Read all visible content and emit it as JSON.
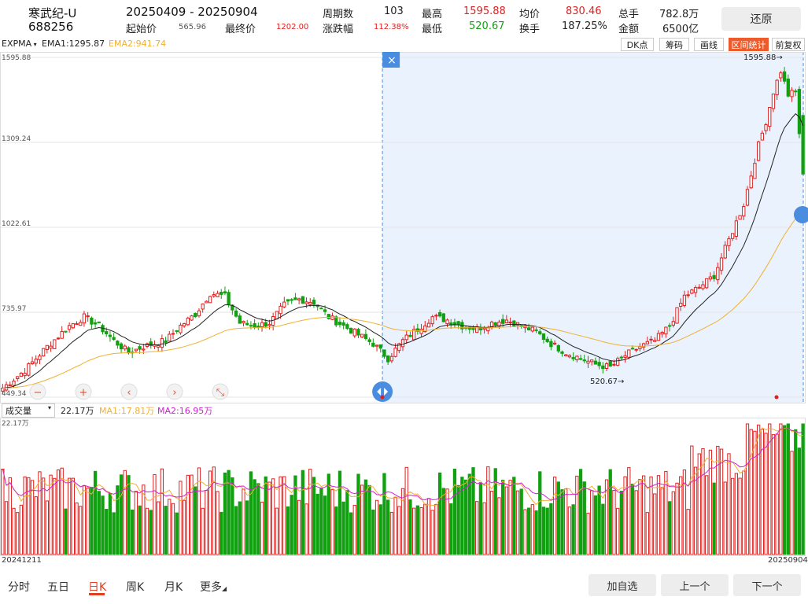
{
  "header": {
    "name": "寒武纪-U",
    "code": "688256",
    "range": "20250409  - 20250904",
    "start_label": "起始价",
    "start_value": "565.96",
    "end_label": "最终价",
    "end_value": "1202.00",
    "period_label": "周期数",
    "period_value": "103",
    "change_label": "涨跌幅",
    "change_value": "112.38%",
    "high_label": "最高",
    "high_value": "1595.88",
    "low_label": "最低",
    "low_value": "520.67",
    "avg_label": "均价",
    "avg_value": "830.46",
    "turnover_label": "换手",
    "turnover_value": "187.25%",
    "hands_label": "总手",
    "hands_value": "782.8万",
    "amount_label": "金额",
    "amount_value": "6500亿",
    "restore_label": "还原"
  },
  "toolbar": {
    "indicator": "EXPMA",
    "ema1": "EMA1:1295.87",
    "ema2": "EMA2:941.74",
    "buttons": [
      "DK点",
      "筹码",
      "画线",
      "区间统计",
      "前复权"
    ]
  },
  "volume_toolbar": {
    "indicator": "成交量",
    "value": "22.17万",
    "ma1": "MA1:17.81万",
    "ma2": "MA2:16.95万"
  },
  "dates": {
    "start": "20241211",
    "end": "20250904"
  },
  "tabs": [
    "分时",
    "五日",
    "日K",
    "周K",
    "月K",
    "更多"
  ],
  "bottom_buttons": [
    "加自选",
    "上一个",
    "下一个"
  ],
  "colors": {
    "up": "#e02020",
    "down": "#11a011",
    "ema1": "#222222",
    "ema2": "#f0b030",
    "ma2": "#d020d0",
    "range_bg": "#eaf2fd",
    "accent": "#ee5a2a"
  },
  "chart_data": {
    "type": "candlestick",
    "ylim": [
      449.34,
      1595.88
    ],
    "y_ticks": [
      "1595.88",
      "1309.24",
      "1022.61",
      "735.97",
      "449.34"
    ],
    "volume_ylabel": "22.17万",
    "annotations": {
      "high": "1595.88",
      "low": "520.67"
    },
    "range_selection": {
      "start": "20250409",
      "end": "20250904"
    },
    "close_anchors": [
      [
        0,
        480
      ],
      [
        6,
        540
      ],
      [
        12,
        620
      ],
      [
        18,
        690
      ],
      [
        22,
        720
      ],
      [
        26,
        690
      ],
      [
        30,
        640
      ],
      [
        34,
        600
      ],
      [
        38,
        620
      ],
      [
        44,
        640
      ],
      [
        48,
        690
      ],
      [
        52,
        730
      ],
      [
        56,
        800
      ],
      [
        60,
        790
      ],
      [
        64,
        700
      ],
      [
        68,
        690
      ],
      [
        72,
        700
      ],
      [
        76,
        760
      ],
      [
        80,
        780
      ],
      [
        84,
        770
      ],
      [
        88,
        720
      ],
      [
        92,
        690
      ],
      [
        96,
        660
      ],
      [
        100,
        630
      ],
      [
        104,
        580
      ],
      [
        108,
        640
      ],
      [
        112,
        680
      ],
      [
        116,
        720
      ],
      [
        120,
        710
      ],
      [
        124,
        690
      ],
      [
        128,
        680
      ],
      [
        132,
        700
      ],
      [
        136,
        710
      ],
      [
        140,
        690
      ],
      [
        144,
        670
      ],
      [
        148,
        630
      ],
      [
        152,
        600
      ],
      [
        156,
        580
      ],
      [
        160,
        560
      ],
      [
        164,
        550
      ],
      [
        168,
        590
      ],
      [
        172,
        620
      ],
      [
        176,
        640
      ],
      [
        180,
        690
      ],
      [
        184,
        790
      ],
      [
        188,
        820
      ],
      [
        192,
        860
      ],
      [
        196,
        980
      ],
      [
        200,
        1100
      ],
      [
        204,
        1300
      ],
      [
        206,
        1380
      ],
      [
        208,
        1480
      ],
      [
        210,
        1550
      ],
      [
        212,
        1470
      ],
      [
        214,
        1480
      ],
      [
        216,
        1202
      ]
    ],
    "volume_note": "volume values in 万, max 22.17"
  },
  "chart_text": {
    "indicator_buttons": [
      "−",
      "+",
      "‹",
      "›",
      "⤡"
    ],
    "close_button": "×"
  }
}
